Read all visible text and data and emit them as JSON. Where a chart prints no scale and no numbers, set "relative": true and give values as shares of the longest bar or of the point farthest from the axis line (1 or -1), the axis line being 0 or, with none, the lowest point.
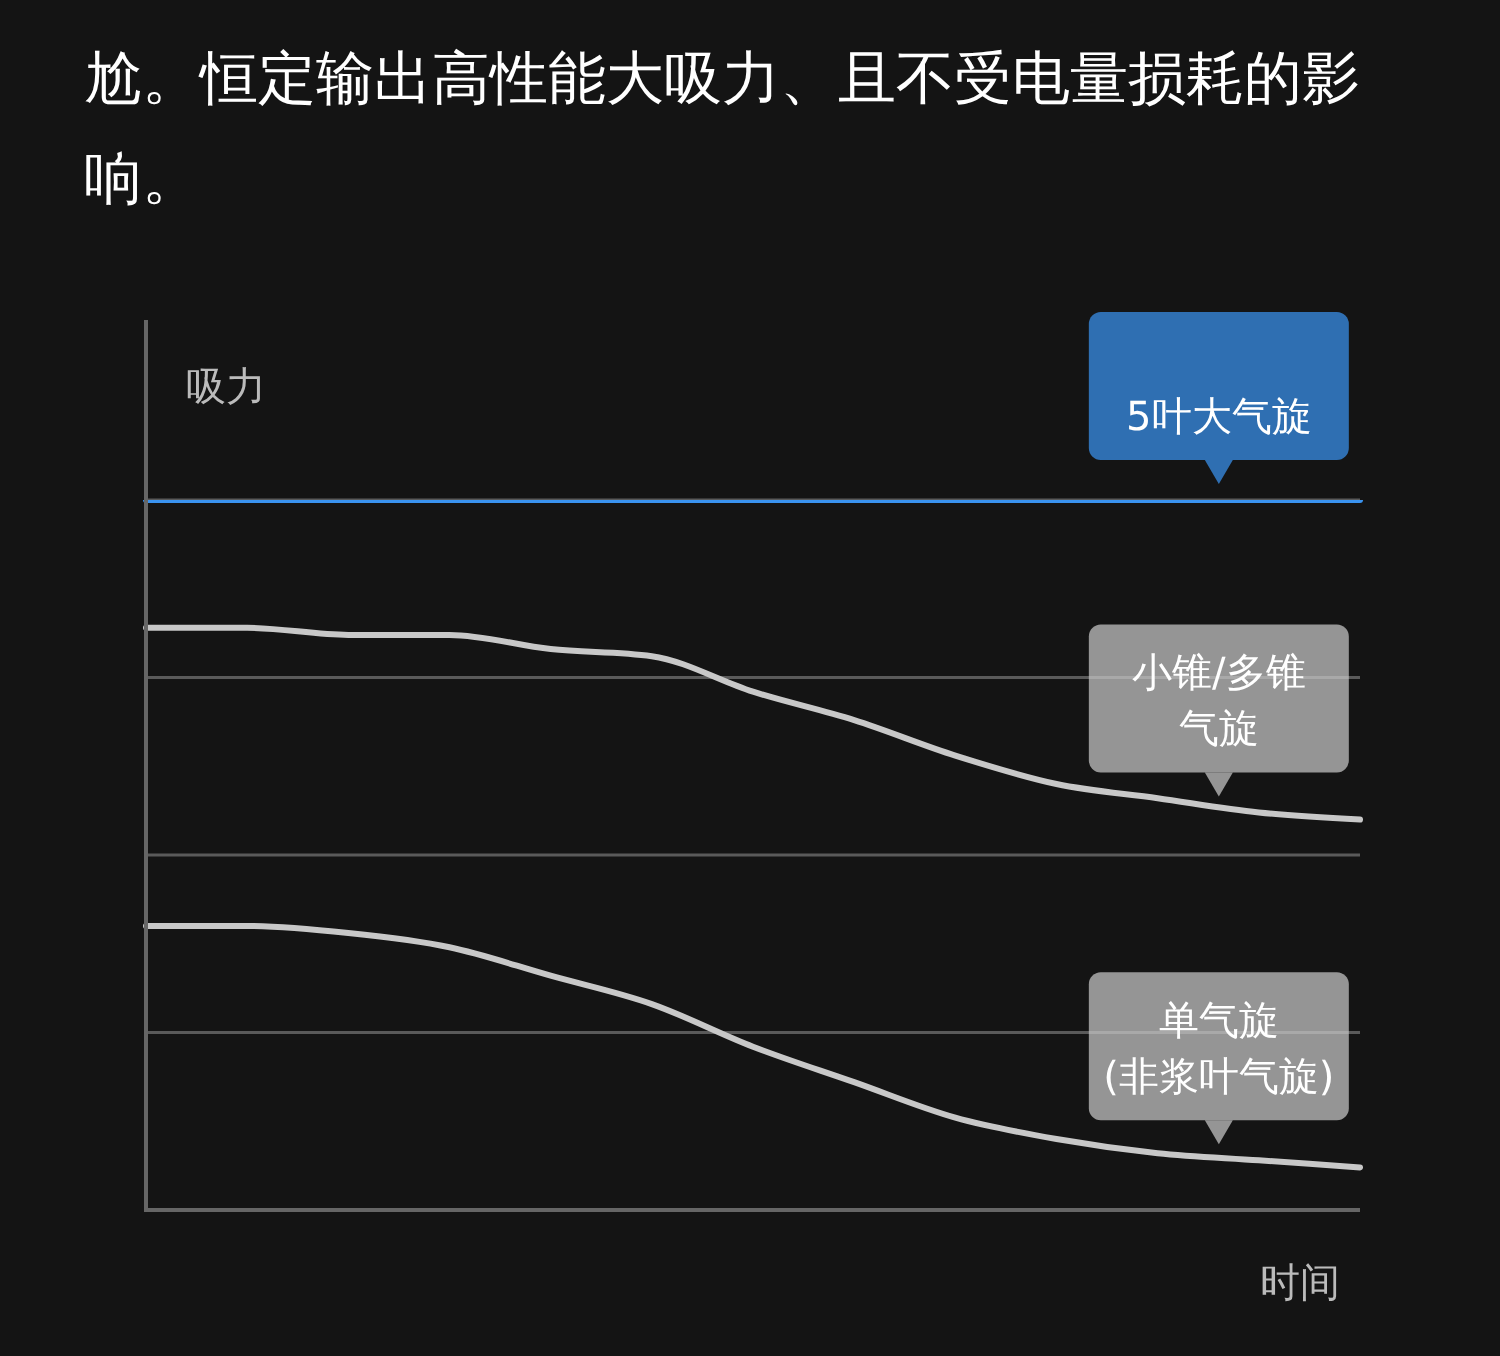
{
  "chart_data": {
    "type": "line",
    "subtitle": "尬。恒定输出高性能大吸力、且不受电量损耗的影响。",
    "ylabel": "吸力",
    "xlabel": "时间",
    "relative": true,
    "categories": [
      null,
      null,
      null,
      null,
      null,
      null,
      null,
      null,
      null,
      null,
      null,
      null,
      null
    ],
    "series": [
      {
        "name": "5叶大气旋",
        "color": "#3a93f0",
        "values": [
          1,
          1,
          1,
          1,
          1,
          1,
          1,
          1,
          1,
          1,
          1,
          1,
          1
        ]
      },
      {
        "name": "小锥/多锥气旋",
        "color": "#c8c8c8",
        "values": [
          0.82,
          0.82,
          0.81,
          0.81,
          0.79,
          0.78,
          0.73,
          0.69,
          0.64,
          0.6,
          0.58,
          0.56,
          0.55
        ]
      },
      {
        "name": "单气旋(非浆叶气旋)",
        "color": "#c8c8c8",
        "values": [
          0.4,
          0.4,
          0.39,
          0.37,
          0.33,
          0.29,
          0.23,
          0.18,
          0.13,
          0.1,
          0.08,
          0.07,
          0.06
        ]
      }
    ],
    "ref_lines": [
      {
        "axis": "y",
        "value": 0.25,
        "color": "#5a5a5a"
      },
      {
        "axis": "y",
        "value": 0.5,
        "color": "#5a5a5a"
      },
      {
        "axis": "y",
        "value": 0.75,
        "color": "#5a5a5a"
      },
      {
        "axis": "y",
        "value": 1,
        "color": "#5a5a5a"
      }
    ],
    "marker": "none",
    "line_style": "solid"
  }
}
